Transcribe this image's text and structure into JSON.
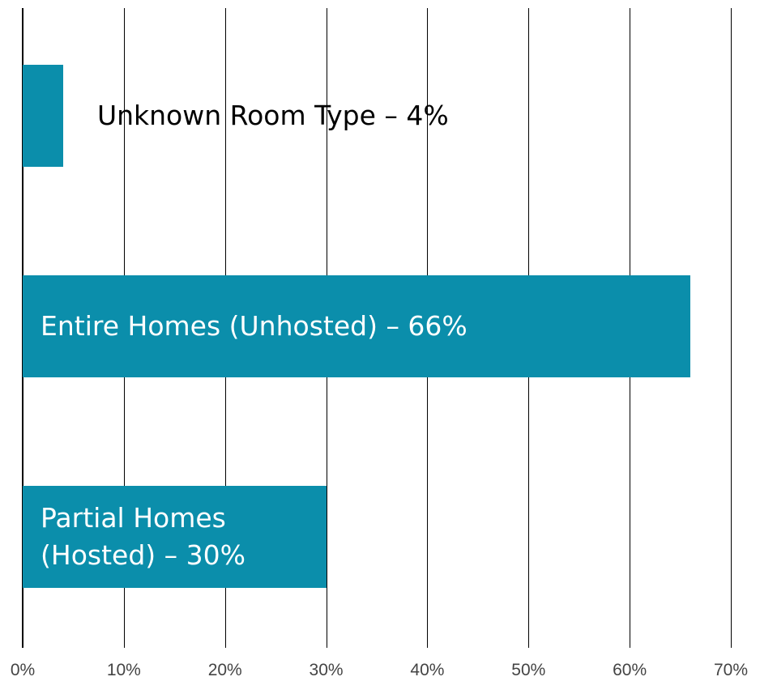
{
  "chart_data": {
    "type": "bar",
    "orientation": "horizontal",
    "color": "#0b8eab",
    "categories": [
      "Unknown Room Type – 4%",
      "Entire Homes (Unhosted) – 66%",
      "Partial Homes (Hosted) – 30%"
    ],
    "values": [
      4,
      66,
      30
    ],
    "xlim": [
      0,
      70
    ],
    "xticks": [
      {
        "value": 0,
        "label": "0%"
      },
      {
        "value": 10,
        "label": "10%"
      },
      {
        "value": 20,
        "label": "20%"
      },
      {
        "value": 30,
        "label": "30%"
      },
      {
        "value": 40,
        "label": "40%"
      },
      {
        "value": 50,
        "label": "50%"
      },
      {
        "value": 60,
        "label": "60%"
      },
      {
        "value": 70,
        "label": "70%"
      }
    ],
    "grid": true
  }
}
